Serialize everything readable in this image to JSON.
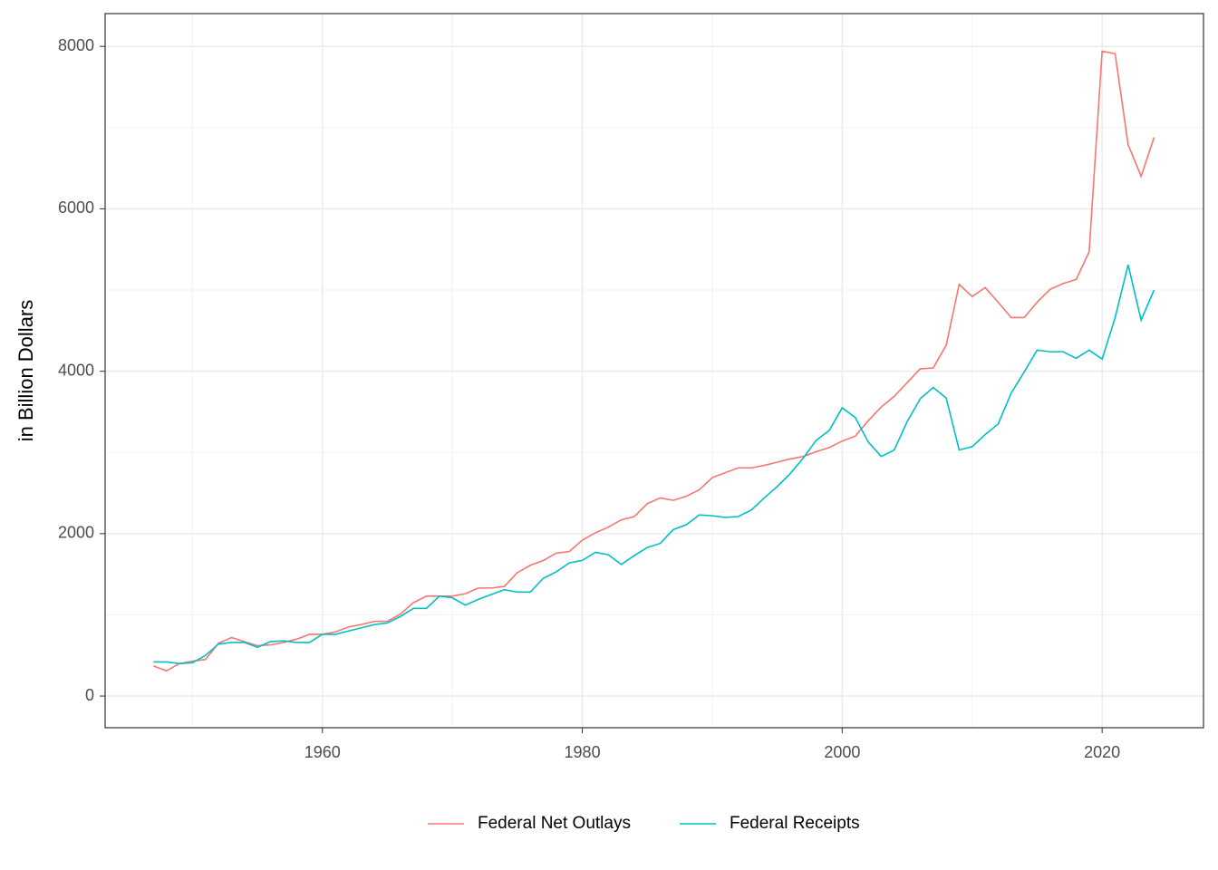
{
  "chart_data": {
    "type": "line",
    "y_label": "in Billion Dollars",
    "x": [
      1947,
      1948,
      1949,
      1950,
      1951,
      1952,
      1953,
      1954,
      1955,
      1956,
      1957,
      1958,
      1959,
      1960,
      1961,
      1962,
      1963,
      1964,
      1965,
      1966,
      1967,
      1968,
      1969,
      1970,
      1971,
      1972,
      1973,
      1974,
      1975,
      1976,
      1977,
      1978,
      1979,
      1980,
      1981,
      1982,
      1983,
      1984,
      1985,
      1986,
      1987,
      1988,
      1989,
      1990,
      1991,
      1992,
      1993,
      1994,
      1995,
      1996,
      1997,
      1998,
      1999,
      2000,
      2001,
      2002,
      2003,
      2004,
      2005,
      2006,
      2007,
      2008,
      2009,
      2010,
      2011,
      2012,
      2013,
      2014,
      2015,
      2016,
      2017,
      2018,
      2019,
      2020,
      2021,
      2022,
      2023,
      2024
    ],
    "series": [
      {
        "name": "Federal Net Outlays",
        "color": "#F8766D",
        "values": [
          370,
          310,
          400,
          430,
          450,
          650,
          720,
          670,
          620,
          630,
          660,
          700,
          760,
          760,
          790,
          850,
          880,
          920,
          920,
          1010,
          1150,
          1230,
          1230,
          1230,
          1260,
          1330,
          1330,
          1350,
          1520,
          1610,
          1670,
          1760,
          1780,
          1920,
          2010,
          2080,
          2170,
          2210,
          2370,
          2440,
          2410,
          2460,
          2540,
          2690,
          2750,
          2810,
          2810,
          2840,
          2880,
          2920,
          2950,
          3010,
          3060,
          3140,
          3200,
          3390,
          3560,
          3690,
          3860,
          4030,
          4040,
          4320,
          5070,
          4920,
          5030,
          4850,
          4660,
          4660,
          4850,
          5010,
          5080,
          5130,
          5470,
          7940,
          7910,
          6790,
          6400,
          6880
        ]
      },
      {
        "name": "Federal Receipts",
        "color": "#00BFC4",
        "values": [
          420,
          420,
          400,
          410,
          500,
          640,
          660,
          660,
          600,
          670,
          680,
          660,
          660,
          760,
          760,
          800,
          840,
          880,
          900,
          980,
          1080,
          1080,
          1230,
          1210,
          1120,
          1190,
          1250,
          1310,
          1280,
          1280,
          1450,
          1530,
          1640,
          1670,
          1770,
          1740,
          1620,
          1730,
          1830,
          1880,
          2050,
          2110,
          2230,
          2220,
          2200,
          2210,
          2290,
          2440,
          2580,
          2740,
          2930,
          3150,
          3270,
          3550,
          3430,
          3130,
          2950,
          3030,
          3380,
          3660,
          3800,
          3670,
          3030,
          3070,
          3220,
          3350,
          3730,
          3990,
          4260,
          4240,
          4240,
          4160,
          4260,
          4150,
          4660,
          5310,
          4630,
          5000
        ]
      }
    ],
    "xlim": [
      1943.28,
      2027.8
    ],
    "ylim": [
      -390,
      8404
    ],
    "xticks": [
      1960,
      1980,
      2000,
      2020
    ],
    "yticks": [
      0,
      2000,
      4000,
      6000,
      8000
    ],
    "xminor": [
      1950,
      1970,
      1990,
      2010
    ],
    "yminor": [
      1000,
      3000,
      5000,
      7000
    ],
    "grid": true,
    "legend": "bottom"
  }
}
